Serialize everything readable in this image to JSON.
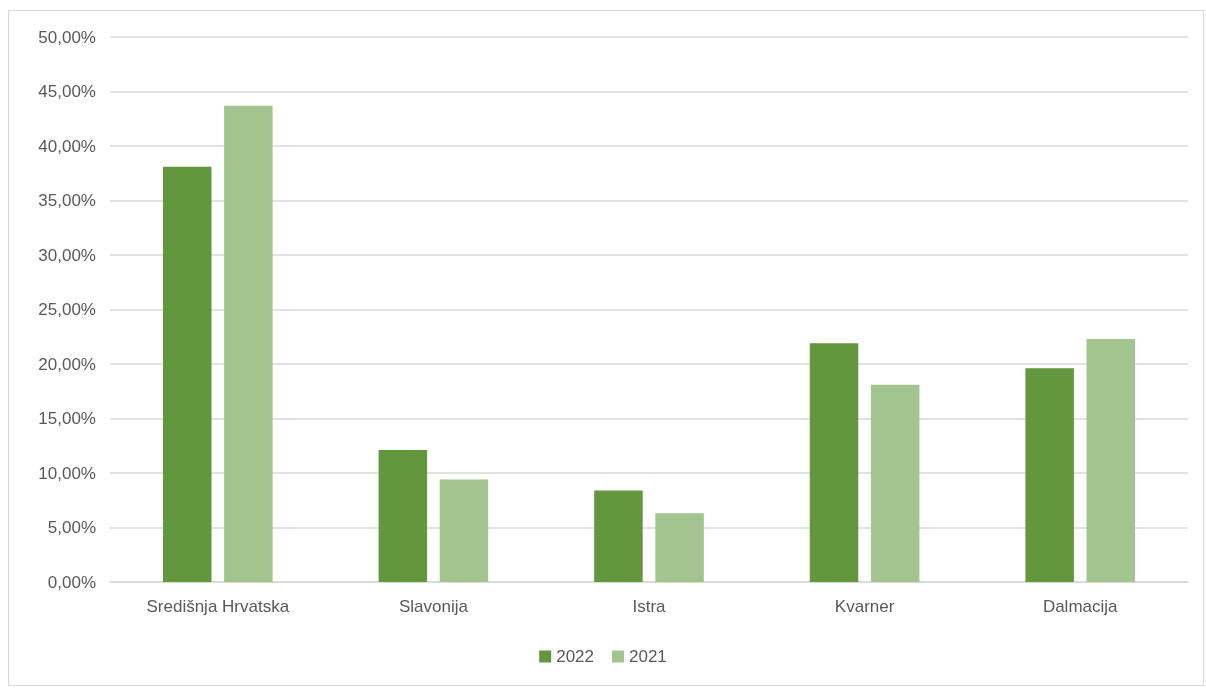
{
  "chart_data": {
    "type": "bar",
    "categories": [
      "Središnja Hrvatska",
      "Slavonija",
      "Istra",
      "Kvarner",
      "Dalmacija"
    ],
    "series": [
      {
        "name": "2022",
        "color": "#62973d",
        "values": [
          38.1,
          12.1,
          8.4,
          21.9,
          19.6
        ]
      },
      {
        "name": "2021",
        "color": "#a2c48f",
        "values": [
          43.7,
          9.4,
          6.3,
          18.1,
          22.3
        ]
      }
    ],
    "ylim": [
      0,
      50
    ],
    "yticks": [
      {
        "value": 0,
        "label": "0,00%"
      },
      {
        "value": 5,
        "label": "5,00%"
      },
      {
        "value": 10,
        "label": "10,00%"
      },
      {
        "value": 15,
        "label": "15,00%"
      },
      {
        "value": 20,
        "label": "20,00%"
      },
      {
        "value": 25,
        "label": "25,00%"
      },
      {
        "value": 30,
        "label": "30,00%"
      },
      {
        "value": 35,
        "label": "35,00%"
      },
      {
        "value": 40,
        "label": "40,00%"
      },
      {
        "value": 45,
        "label": "45,00%"
      },
      {
        "value": 50,
        "label": "50,00%"
      }
    ],
    "grid": "y",
    "legend": "bottom"
  }
}
